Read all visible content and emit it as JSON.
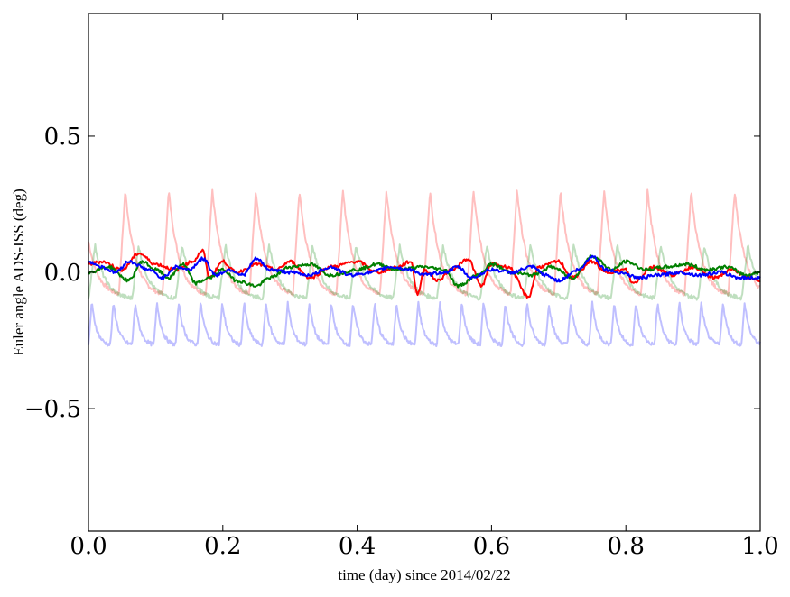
{
  "chart_data": {
    "type": "line",
    "title": "",
    "xlabel": "time (day) since 2014/02/22",
    "ylabel": "Euler angle ADS-ISS (deg)",
    "xlim": [
      0.0,
      1.0
    ],
    "ylim": [
      -0.95,
      0.95
    ],
    "x_ticks": [
      {
        "value": 0.0,
        "label": "0.0"
      },
      {
        "value": 0.2,
        "label": "0.2"
      },
      {
        "value": 0.4,
        "label": "0.4"
      },
      {
        "value": 0.6,
        "label": "0.6"
      },
      {
        "value": 0.8,
        "label": "0.8"
      },
      {
        "value": 1.0,
        "label": "1.0"
      }
    ],
    "y_ticks": [
      {
        "value": 0.5,
        "label": "0.5"
      },
      {
        "value": 0.0,
        "label": "0.0"
      },
      {
        "value": -0.5,
        "label": "−0.5"
      }
    ],
    "grid": false,
    "legend": "none",
    "series": [
      {
        "color": "#ff0000",
        "opacity": 0.25,
        "kind": "periodic",
        "period": 0.0648,
        "phase": 0.045,
        "baseline": -0.02,
        "peak": 0.3,
        "trough": -0.09,
        "peak_times": [
          0.109,
          0.174,
          0.239,
          0.304,
          0.369,
          0.434,
          0.499,
          0.564,
          0.629,
          0.694,
          0.759,
          0.824,
          0.889,
          0.954
        ]
      },
      {
        "color": "#008000",
        "opacity": 0.25,
        "kind": "periodic",
        "period": 0.0648,
        "phase": 0.0,
        "baseline": 0.0,
        "peak": 0.1,
        "trough": -0.1
      },
      {
        "color": "#0000ff",
        "opacity": 0.25,
        "kind": "periodic",
        "period": 0.0324,
        "phase": 0.0,
        "baseline": -0.18,
        "peak": -0.11,
        "trough": -0.27
      },
      {
        "color": "#ff0000",
        "opacity": 1.0,
        "kind": "noisy",
        "points": [
          [
            0.0,
            0.03
          ],
          [
            0.02,
            0.04
          ],
          [
            0.05,
            0.01
          ],
          [
            0.075,
            0.07
          ],
          [
            0.1,
            0.03
          ],
          [
            0.13,
            0.01
          ],
          [
            0.155,
            0.04
          ],
          [
            0.17,
            0.08
          ],
          [
            0.18,
            -0.02
          ],
          [
            0.2,
            0.04
          ],
          [
            0.22,
            0.0
          ],
          [
            0.25,
            0.03
          ],
          [
            0.28,
            0.01
          ],
          [
            0.3,
            0.04
          ],
          [
            0.33,
            -0.02
          ],
          [
            0.36,
            0.02
          ],
          [
            0.4,
            0.04
          ],
          [
            0.43,
            0.0
          ],
          [
            0.46,
            0.02
          ],
          [
            0.48,
            0.04
          ],
          [
            0.49,
            -0.08
          ],
          [
            0.5,
            0.01
          ],
          [
            0.52,
            -0.03
          ],
          [
            0.54,
            0.01
          ],
          [
            0.565,
            0.05
          ],
          [
            0.585,
            -0.05
          ],
          [
            0.6,
            0.03
          ],
          [
            0.625,
            0.02
          ],
          [
            0.655,
            -0.09
          ],
          [
            0.67,
            0.02
          ],
          [
            0.7,
            0.04
          ],
          [
            0.72,
            -0.02
          ],
          [
            0.75,
            0.04
          ],
          [
            0.77,
            0.0
          ],
          [
            0.8,
            0.01
          ],
          [
            0.81,
            -0.04
          ],
          [
            0.84,
            0.02
          ],
          [
            0.87,
            -0.01
          ],
          [
            0.9,
            0.02
          ],
          [
            0.93,
            -0.02
          ],
          [
            0.96,
            0.01
          ],
          [
            0.98,
            -0.02
          ],
          [
            1.0,
            -0.03
          ]
        ]
      },
      {
        "color": "#008000",
        "opacity": 1.0,
        "kind": "noisy",
        "points": [
          [
            0.0,
            0.0
          ],
          [
            0.03,
            0.02
          ],
          [
            0.06,
            -0.03
          ],
          [
            0.08,
            0.04
          ],
          [
            0.1,
            0.01
          ],
          [
            0.12,
            -0.02
          ],
          [
            0.14,
            0.03
          ],
          [
            0.16,
            -0.04
          ],
          [
            0.18,
            -0.02
          ],
          [
            0.2,
            0.01
          ],
          [
            0.22,
            -0.03
          ],
          [
            0.25,
            -0.05
          ],
          [
            0.27,
            -0.02
          ],
          [
            0.3,
            0.02
          ],
          [
            0.33,
            0.03
          ],
          [
            0.36,
            -0.01
          ],
          [
            0.4,
            0.01
          ],
          [
            0.43,
            0.03
          ],
          [
            0.46,
            0.01
          ],
          [
            0.5,
            0.02
          ],
          [
            0.53,
            0.01
          ],
          [
            0.55,
            -0.05
          ],
          [
            0.58,
            -0.01
          ],
          [
            0.6,
            0.03
          ],
          [
            0.63,
            0.0
          ],
          [
            0.66,
            -0.01
          ],
          [
            0.69,
            0.02
          ],
          [
            0.72,
            -0.02
          ],
          [
            0.75,
            0.06
          ],
          [
            0.78,
            0.01
          ],
          [
            0.8,
            0.04
          ],
          [
            0.83,
            0.01
          ],
          [
            0.86,
            0.02
          ],
          [
            0.89,
            0.03
          ],
          [
            0.92,
            0.01
          ],
          [
            0.95,
            0.02
          ],
          [
            0.98,
            -0.01
          ],
          [
            1.0,
            0.0
          ]
        ]
      },
      {
        "color": "#0000ff",
        "opacity": 1.0,
        "kind": "noisy",
        "points": [
          [
            0.0,
            0.04
          ],
          [
            0.02,
            0.02
          ],
          [
            0.04,
            0.0
          ],
          [
            0.06,
            0.04
          ],
          [
            0.09,
            0.01
          ],
          [
            0.11,
            -0.02
          ],
          [
            0.13,
            0.02
          ],
          [
            0.15,
            0.01
          ],
          [
            0.17,
            0.05
          ],
          [
            0.19,
            -0.01
          ],
          [
            0.21,
            0.01
          ],
          [
            0.23,
            -0.01
          ],
          [
            0.25,
            0.05
          ],
          [
            0.27,
            0.01
          ],
          [
            0.3,
            0.0
          ],
          [
            0.33,
            -0.01
          ],
          [
            0.36,
            0.02
          ],
          [
            0.39,
            -0.01
          ],
          [
            0.42,
            0.0
          ],
          [
            0.45,
            0.02
          ],
          [
            0.48,
            0.01
          ],
          [
            0.5,
            -0.01
          ],
          [
            0.53,
            0.0
          ],
          [
            0.55,
            0.02
          ],
          [
            0.57,
            -0.02
          ],
          [
            0.6,
            0.01
          ],
          [
            0.63,
            0.0
          ],
          [
            0.66,
            0.02
          ],
          [
            0.68,
            -0.01
          ],
          [
            0.7,
            -0.03
          ],
          [
            0.73,
            0.01
          ],
          [
            0.75,
            0.06
          ],
          [
            0.77,
            0.01
          ],
          [
            0.79,
            0.0
          ],
          [
            0.82,
            -0.02
          ],
          [
            0.85,
            -0.01
          ],
          [
            0.88,
            0.0
          ],
          [
            0.91,
            -0.01
          ],
          [
            0.94,
            0.0
          ],
          [
            0.97,
            -0.02
          ],
          [
            1.0,
            -0.02
          ]
        ]
      }
    ]
  }
}
